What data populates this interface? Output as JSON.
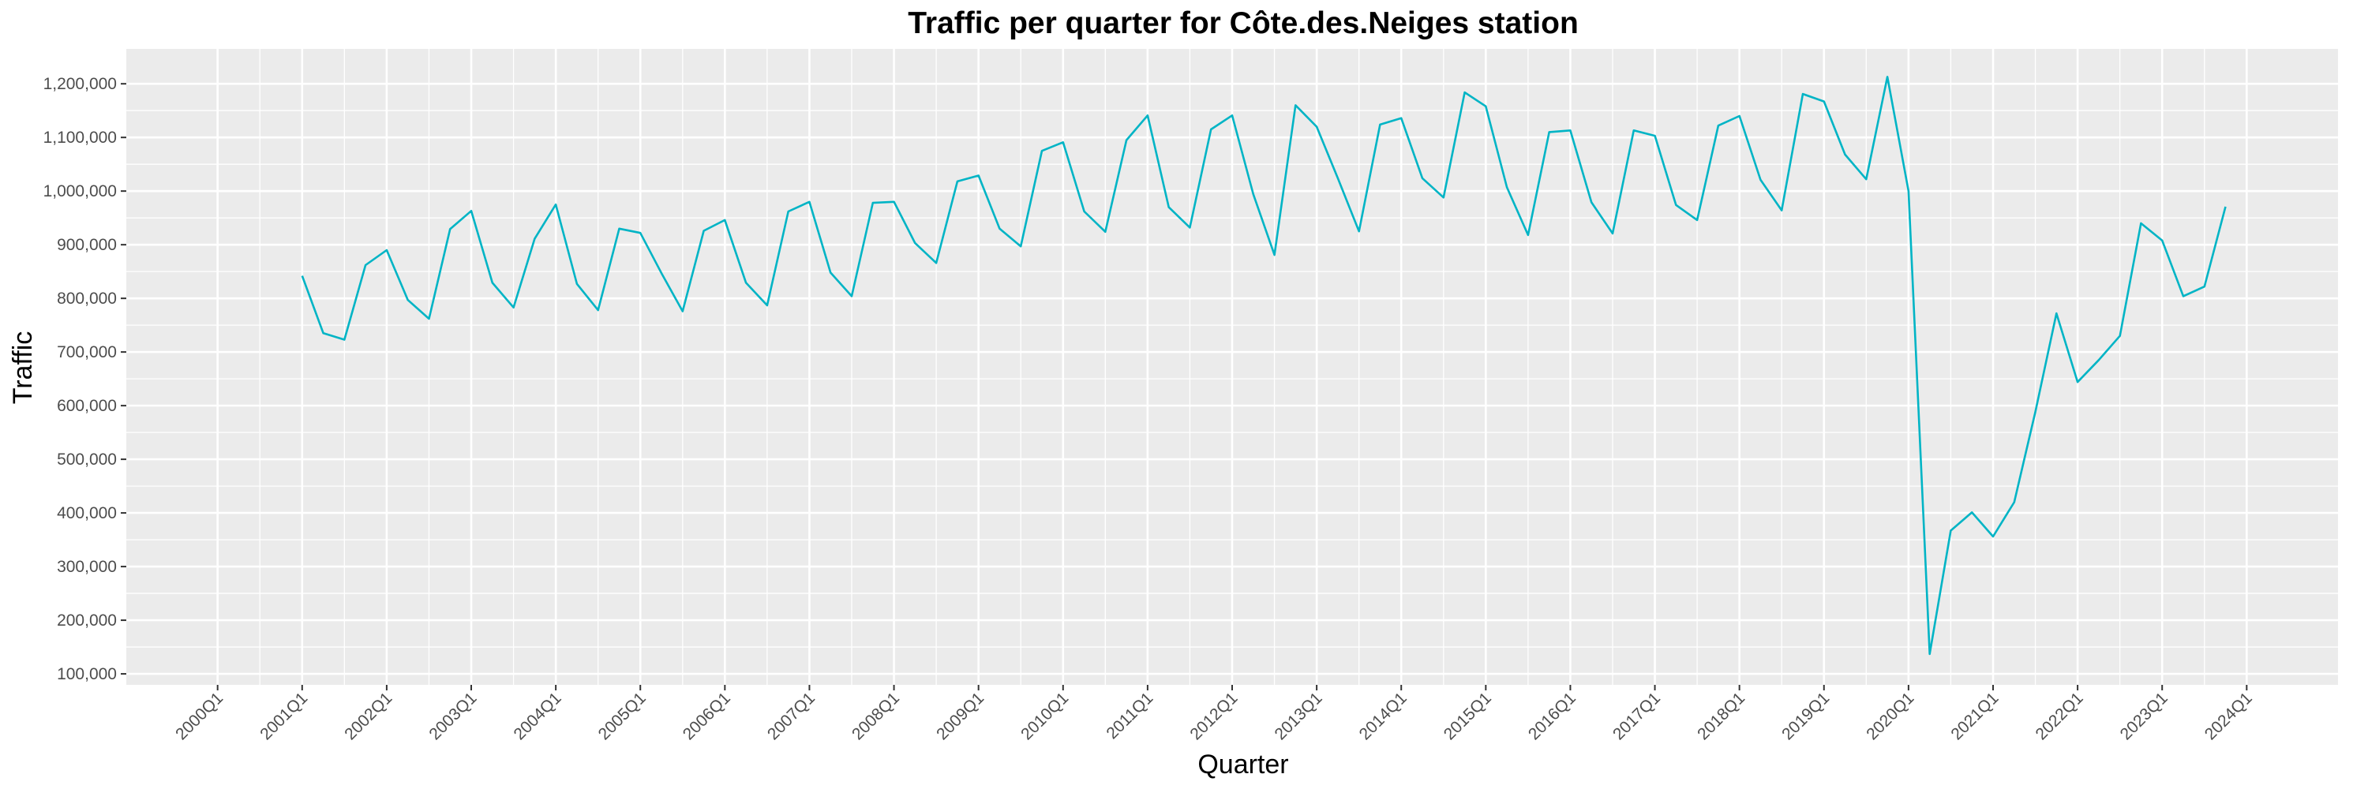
{
  "chart_data": {
    "type": "line",
    "title": "Traffic per quarter for Côte.des.Neiges station",
    "xlabel": "Quarter",
    "ylabel": "Traffic",
    "colors": {
      "line": "#00B4C5",
      "panel": "#EBEBEB",
      "grid": "#FFFFFF"
    },
    "grid": true,
    "legend": "none",
    "xlim": [
      "2000Q1",
      "2024Q1"
    ],
    "ylim": [
      100000,
      1200000
    ],
    "x_ticks": [
      "2000Q1",
      "2001Q1",
      "2002Q1",
      "2003Q1",
      "2004Q1",
      "2005Q1",
      "2006Q1",
      "2007Q1",
      "2008Q1",
      "2009Q1",
      "2010Q1",
      "2011Q1",
      "2012Q1",
      "2013Q1",
      "2014Q1",
      "2015Q1",
      "2016Q1",
      "2017Q1",
      "2018Q1",
      "2019Q1",
      "2020Q1",
      "2021Q1",
      "2022Q1",
      "2023Q1",
      "2024Q1"
    ],
    "y_ticks": [
      100000,
      200000,
      300000,
      400000,
      500000,
      600000,
      700000,
      800000,
      900000,
      1000000,
      1100000,
      1200000
    ],
    "y_tick_labels": [
      "100,000",
      "200,000",
      "300,000",
      "400,000",
      "500,000",
      "600,000",
      "700,000",
      "800,000",
      "900,000",
      "1,000,000",
      "1,100,000",
      "1,200,000"
    ],
    "x": [
      "2001Q1",
      "2001Q2",
      "2001Q3",
      "2001Q4",
      "2002Q1",
      "2002Q2",
      "2002Q3",
      "2002Q4",
      "2003Q1",
      "2003Q2",
      "2003Q3",
      "2003Q4",
      "2004Q1",
      "2004Q2",
      "2004Q3",
      "2004Q4",
      "2005Q1",
      "2005Q2",
      "2005Q3",
      "2005Q4",
      "2006Q1",
      "2006Q2",
      "2006Q3",
      "2006Q4",
      "2007Q1",
      "2007Q2",
      "2007Q3",
      "2007Q4",
      "2008Q1",
      "2008Q2",
      "2008Q3",
      "2008Q4",
      "2009Q1",
      "2009Q2",
      "2009Q3",
      "2009Q4",
      "2010Q1",
      "2010Q2",
      "2010Q3",
      "2010Q4",
      "2011Q1",
      "2011Q2",
      "2011Q3",
      "2011Q4",
      "2012Q1",
      "2012Q2",
      "2012Q3",
      "2012Q4",
      "2013Q1",
      "2013Q2",
      "2013Q3",
      "2013Q4",
      "2014Q1",
      "2014Q2",
      "2014Q3",
      "2014Q4",
      "2015Q1",
      "2015Q2",
      "2015Q3",
      "2015Q4",
      "2016Q1",
      "2016Q2",
      "2016Q3",
      "2016Q4",
      "2017Q1",
      "2017Q2",
      "2017Q3",
      "2017Q4",
      "2018Q1",
      "2018Q2",
      "2018Q3",
      "2018Q4",
      "2019Q1",
      "2019Q2",
      "2019Q3",
      "2019Q4",
      "2020Q1",
      "2020Q2",
      "2020Q3",
      "2020Q4",
      "2021Q1",
      "2021Q2",
      "2021Q3",
      "2021Q4",
      "2022Q1",
      "2022Q2",
      "2022Q3",
      "2022Q4",
      "2023Q1",
      "2023Q2",
      "2023Q3",
      "2023Q4"
    ],
    "values": [
      842000,
      735000,
      723000,
      862000,
      890000,
      797000,
      762000,
      929000,
      963000,
      829000,
      783000,
      911000,
      975000,
      827000,
      778000,
      930000,
      922000,
      847000,
      776000,
      926000,
      946000,
      829000,
      787000,
      962000,
      980000,
      848000,
      804000,
      978000,
      980000,
      903000,
      866000,
      1018000,
      1029000,
      930000,
      897000,
      1075000,
      1091000,
      962000,
      924000,
      1095000,
      1141000,
      970000,
      932000,
      1115000,
      1141000,
      994000,
      881000,
      1160000,
      1120000,
      1024000,
      925000,
      1124000,
      1136000,
      1024000,
      988000,
      1184000,
      1158000,
      1007000,
      918000,
      1110000,
      1113000,
      979000,
      921000,
      1113000,
      1103000,
      974000,
      946000,
      1122000,
      1140000,
      1021000,
      964000,
      1181000,
      1167000,
      1068000,
      1022000,
      1213000,
      1000000,
      137000,
      367000,
      401000,
      356000,
      420000,
      588000,
      772000,
      644000,
      685000,
      730000,
      940000,
      908000,
      804000,
      822000,
      971000
    ]
  }
}
